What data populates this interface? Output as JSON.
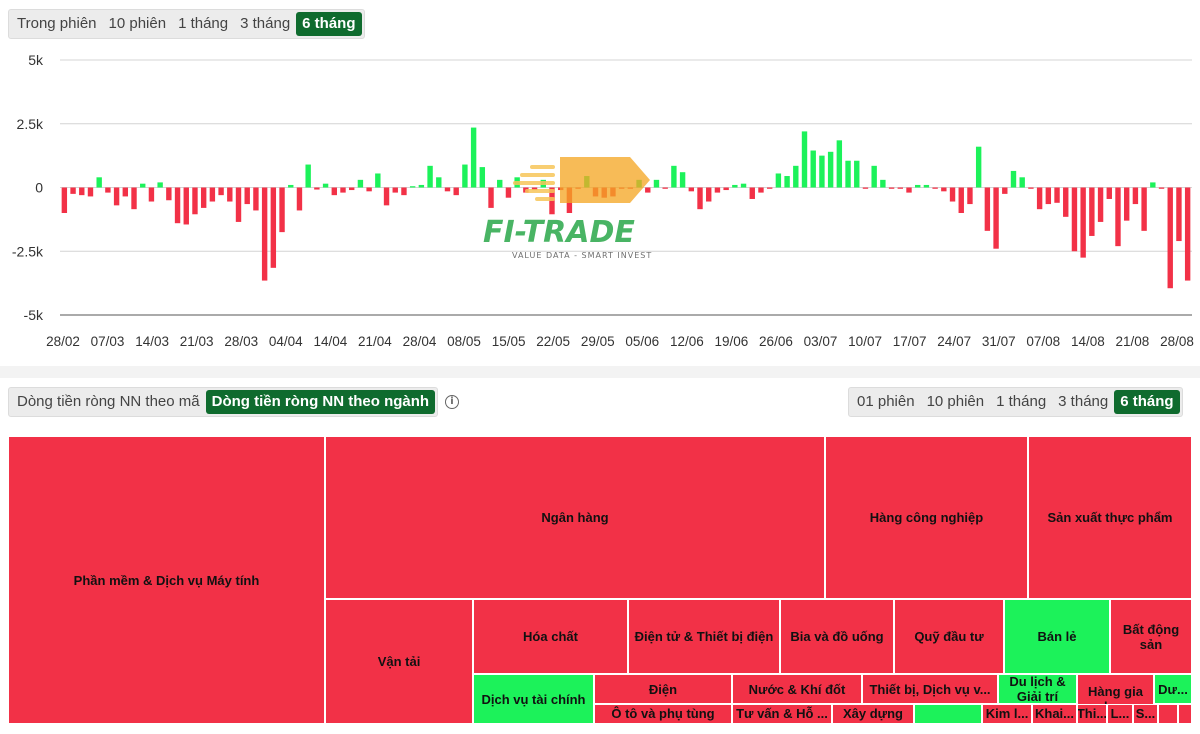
{
  "top_tabs": [
    "Trong phiên",
    "10 phiên",
    "1 tháng",
    "3 tháng",
    "6 tháng"
  ],
  "top_active": "6 tháng",
  "mode_tabs": [
    "Dòng tiền ròng NN theo mã",
    "Dòng tiền ròng NN theo ngành"
  ],
  "mode_active": "Dòng tiền ròng NN theo ngành",
  "period_tabs": [
    "01 phiên",
    "10 phiên",
    "1 tháng",
    "3 tháng",
    "6 tháng"
  ],
  "period_active": "6 tháng",
  "info_icon": "i",
  "colors": {
    "positive": "#1cf25a",
    "negative": "#f23147",
    "accent": "#0f6b2e",
    "grid": "#d4d4d4"
  },
  "watermark": {
    "brand": "FI-TRADE",
    "tagline": "VALUE DATA - SMART INVEST"
  },
  "chart_data": {
    "type": "bar",
    "ylim": [
      -5000,
      5000
    ],
    "y_ticks": [
      5000,
      2500,
      0,
      -2500,
      -5000
    ],
    "y_tick_labels": [
      "5k",
      "2.5k",
      "0",
      "-2.5k",
      "-5k"
    ],
    "x_tick_labels": [
      "28/02",
      "07/03",
      "14/03",
      "21/03",
      "28/03",
      "04/04",
      "14/04",
      "21/04",
      "28/04",
      "08/05",
      "15/05",
      "22/05",
      "29/05",
      "05/06",
      "12/06",
      "19/06",
      "26/06",
      "03/07",
      "10/07",
      "17/07",
      "24/07",
      "31/07",
      "07/08",
      "14/08",
      "21/08",
      "28/08"
    ],
    "values": [
      -1000,
      -250,
      -300,
      -350,
      400,
      -200,
      -700,
      -350,
      -850,
      150,
      -550,
      200,
      -500,
      -1400,
      -1450,
      -1050,
      -800,
      -550,
      -300,
      -550,
      -1350,
      -650,
      -900,
      -3650,
      -3150,
      -1750,
      100,
      -900,
      900,
      -80,
      150,
      -300,
      -200,
      -100,
      300,
      -150,
      550,
      -700,
      -200,
      -300,
      50,
      100,
      850,
      400,
      -150,
      -300,
      900,
      2350,
      800,
      -800,
      300,
      -400,
      400,
      -200,
      -100,
      300,
      -1050,
      -100,
      -1000,
      -50,
      450,
      -350,
      -400,
      -350,
      -50,
      -50,
      300,
      -200,
      300,
      -50,
      850,
      600,
      -150,
      -850,
      -550,
      -200,
      -100,
      100,
      150,
      -450,
      -200,
      -50,
      550,
      450,
      850,
      2200,
      1450,
      1250,
      1400,
      1850,
      1050,
      1050,
      -50,
      850,
      300,
      -50,
      -50,
      -200,
      100,
      100,
      -50,
      -150,
      -550,
      -1000,
      -650,
      1600,
      -1700,
      -2400,
      -250,
      650,
      400,
      -50,
      -850,
      -650,
      -600,
      -1150,
      -2500,
      -2750,
      -1900,
      -1350,
      -450,
      -2300,
      -1300,
      -650,
      -1700,
      200,
      -50,
      -3950,
      -2100,
      -3650
    ]
  },
  "treemap": [
    {
      "label": "Phần mềm & Dịch vụ Máy tính",
      "sign": "neg"
    },
    {
      "label": "Ngân hàng",
      "sign": "neg"
    },
    {
      "label": "Hàng công nghiệp",
      "sign": "neg"
    },
    {
      "label": "Sản xuất thực phẩm",
      "sign": "neg"
    },
    {
      "label": "Vận tải",
      "sign": "neg"
    },
    {
      "label": "Hóa chất",
      "sign": "neg"
    },
    {
      "label": "Điện tử & Thiết bị điện",
      "sign": "neg"
    },
    {
      "label": "Bia và đồ uống",
      "sign": "neg"
    },
    {
      "label": "Quỹ đầu tư",
      "sign": "neg"
    },
    {
      "label": "Bán lẻ",
      "sign": "pos"
    },
    {
      "label": "Bất động sản",
      "sign": "neg"
    },
    {
      "label": "Dịch vụ tài chính",
      "sign": "pos"
    },
    {
      "label": "Điện",
      "sign": "neg"
    },
    {
      "label": "Ô tô và phụ tùng",
      "sign": "neg"
    },
    {
      "label": "Nước & Khí đốt",
      "sign": "neg"
    },
    {
      "label": "Tư vấn & Hỗ ...",
      "sign": "neg"
    },
    {
      "label": "Xây dựng v...",
      "sign": "neg"
    },
    {
      "label": "Thiết bị, Dịch vụ v...",
      "sign": "neg"
    },
    {
      "label": "",
      "sign": "pos"
    },
    {
      "label": "Du lịch & Giải trí",
      "sign": "pos"
    },
    {
      "label": "Kim l...",
      "sign": "neg"
    },
    {
      "label": "Khai...",
      "sign": "neg"
    },
    {
      "label": "Hàng gia dụng",
      "sign": "neg"
    },
    {
      "label": "Thi...",
      "sign": "neg"
    },
    {
      "label": "L...",
      "sign": "neg"
    },
    {
      "label": "S...",
      "sign": "neg"
    },
    {
      "label": "Dư...",
      "sign": "pos"
    },
    {
      "label": "",
      "sign": "neg"
    },
    {
      "label": "",
      "sign": "neg"
    }
  ]
}
